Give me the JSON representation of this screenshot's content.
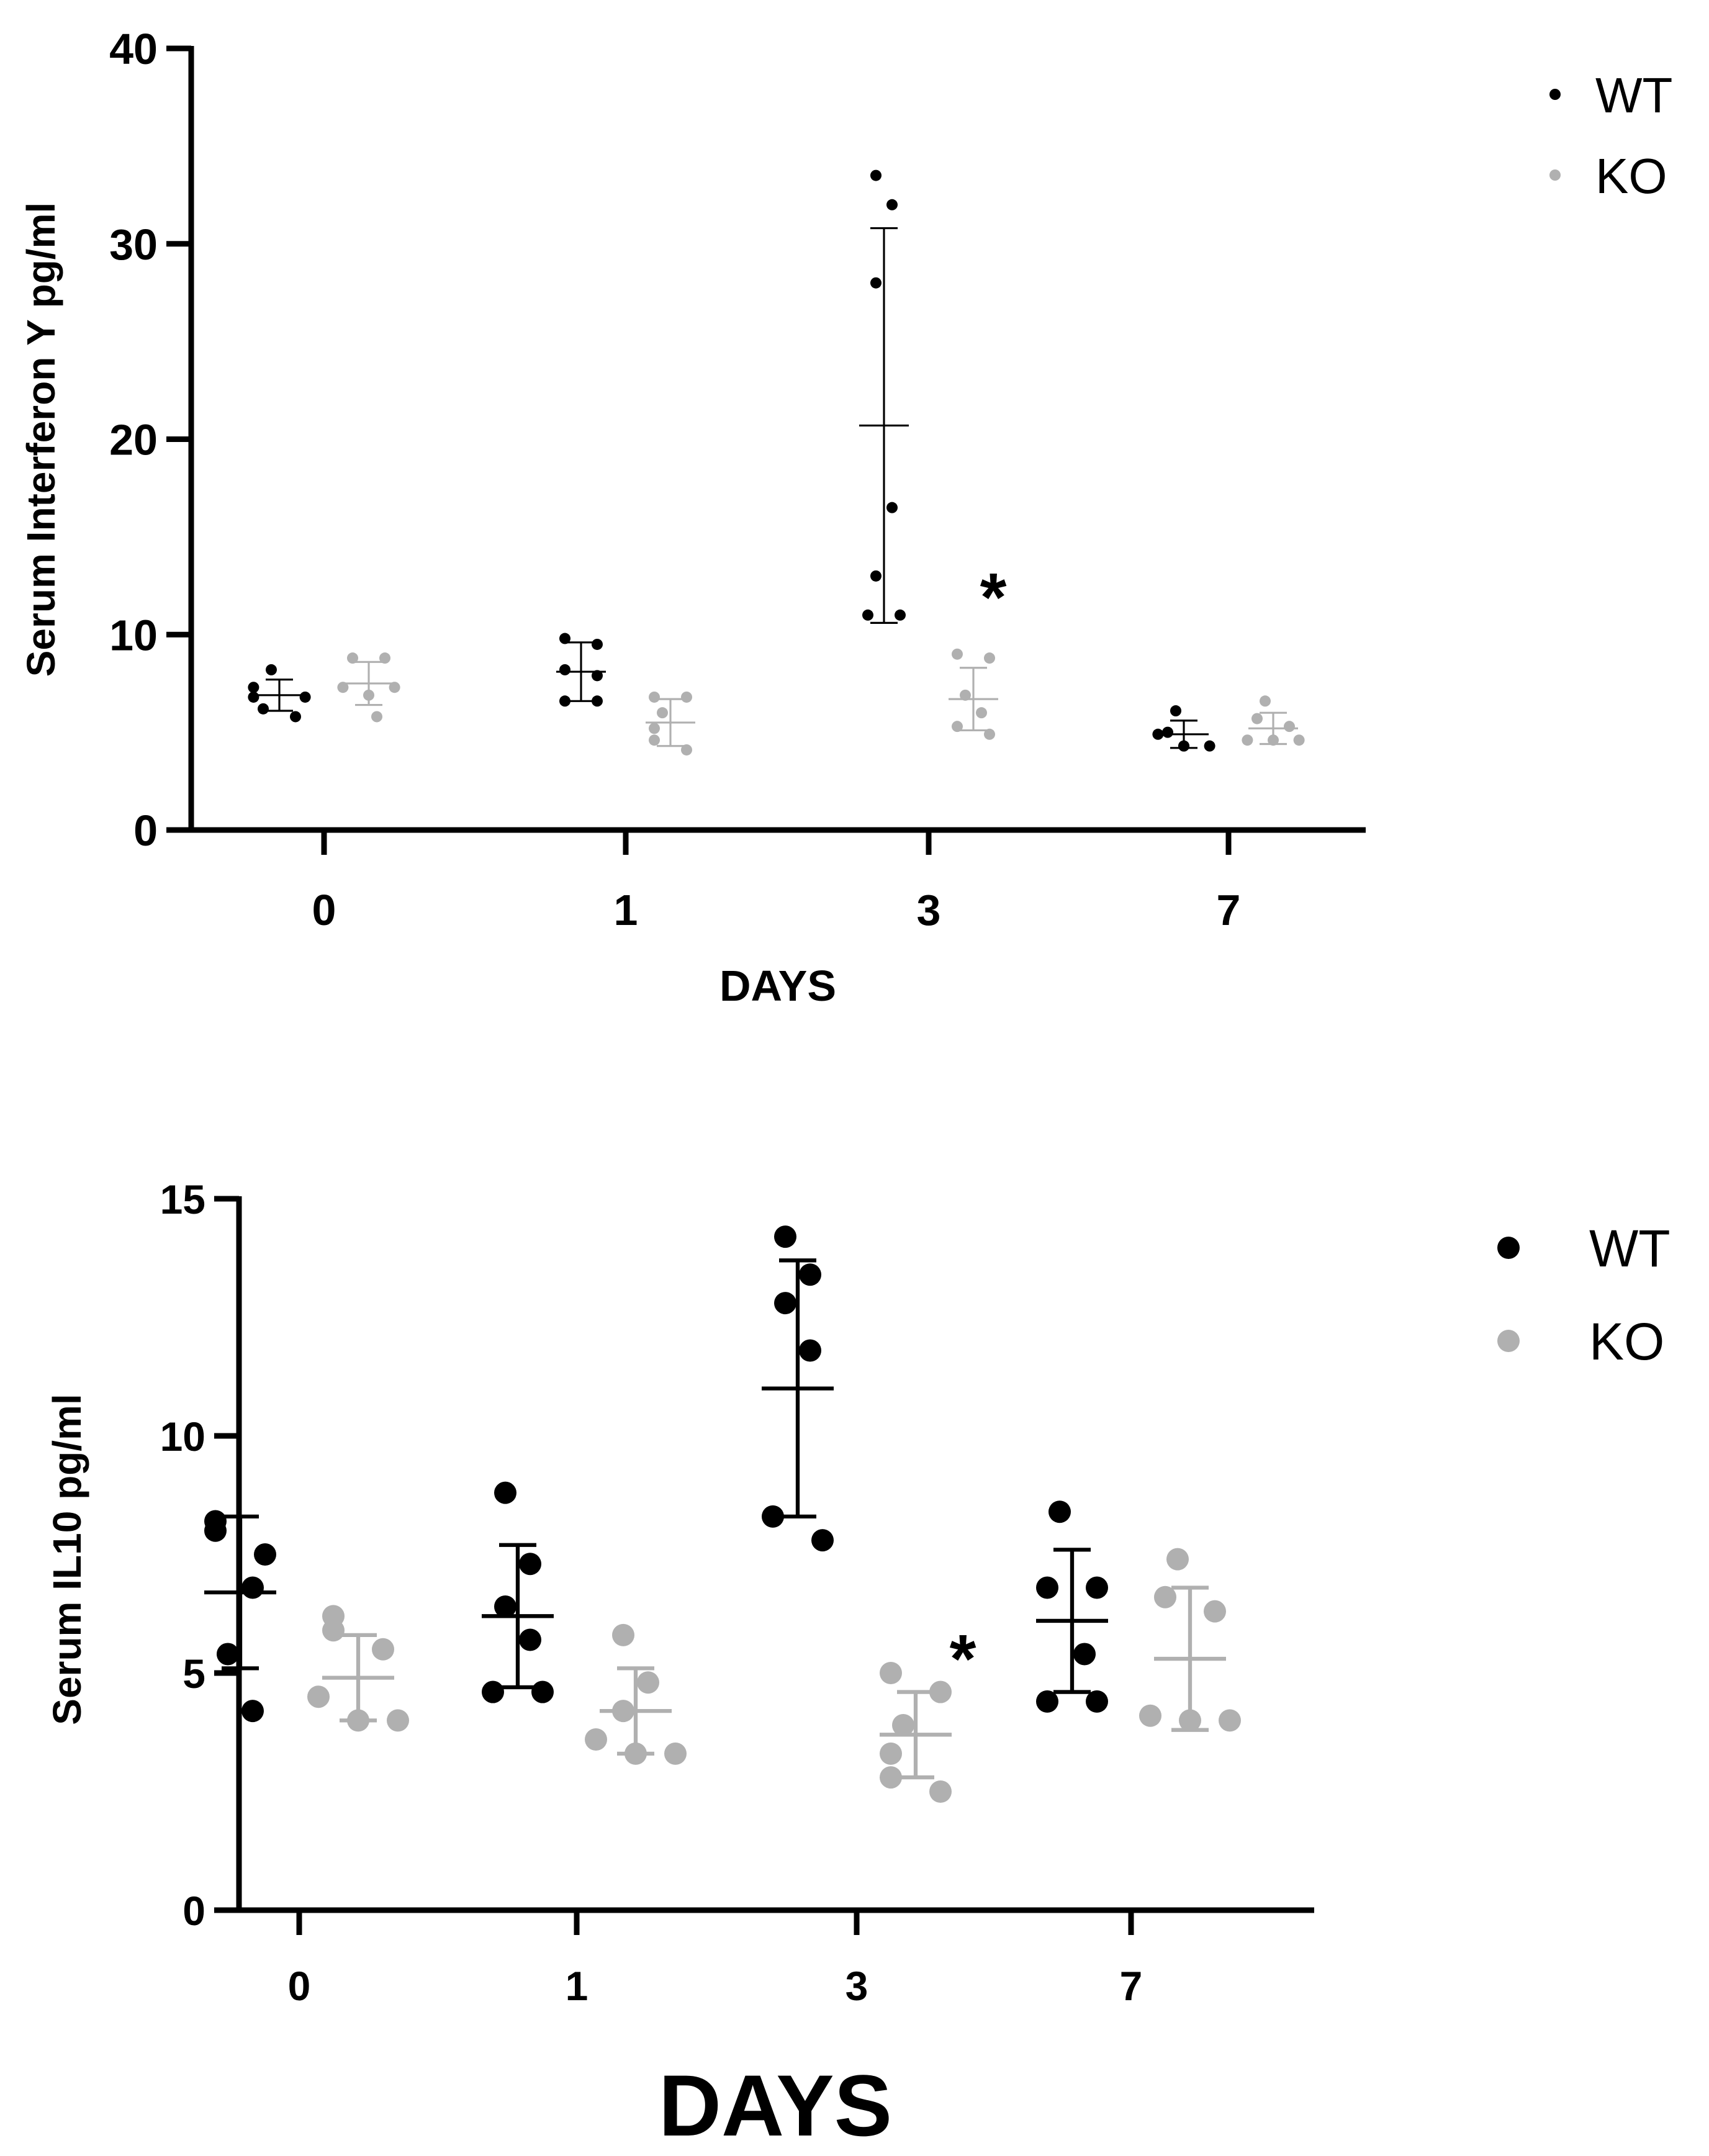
{
  "colors": {
    "wt": "#000000",
    "ko": "#b0b0b0",
    "axis": "#000000"
  },
  "chart_data": [
    {
      "type": "scatter",
      "title": "",
      "ylabel": "Serum Interferon Υ pg/ml",
      "xlabel": "DAYS",
      "ylim": [
        0,
        40
      ],
      "yticks": [
        "0",
        "10",
        "20",
        "30",
        "40"
      ],
      "categories": [
        "0",
        "1",
        "3",
        "7"
      ],
      "legend_position": "top-right",
      "significance_mark": "*",
      "significance_category": "3",
      "series": [
        {
          "name": "WT",
          "points": [
            [
              8.2,
              7.3,
              6.8,
              6.8,
              6.2,
              5.8
            ],
            [
              9.8,
              9.5,
              8.2,
              7.9,
              6.6,
              6.6
            ],
            [
              33.5,
              32.0,
              28.0,
              16.5,
              13.0,
              11.0,
              11.0
            ],
            [
              6.1,
              5.0,
              4.9,
              4.3,
              4.3,
              4.3
            ]
          ],
          "mean": [
            6.9,
            8.1,
            20.7,
            4.9
          ],
          "sd": [
            0.8,
            1.5,
            10.1,
            0.7
          ]
        },
        {
          "name": "KO",
          "points": [
            [
              8.8,
              8.8,
              7.3,
              7.3,
              6.9,
              5.8
            ],
            [
              6.8,
              6.8,
              6.0,
              5.2,
              4.6,
              4.1
            ],
            [
              9.0,
              8.8,
              6.9,
              6.0,
              5.3,
              4.9
            ],
            [
              6.6,
              5.7,
              5.3,
              4.6,
              4.6,
              4.6
            ]
          ],
          "mean": [
            7.5,
            5.5,
            6.7,
            5.2
          ],
          "sd": [
            1.1,
            1.2,
            1.6,
            0.8
          ]
        }
      ]
    },
    {
      "type": "scatter",
      "title": "",
      "ylabel": "Serum IL10 pg/ml",
      "xlabel": "DAYS",
      "ylim": [
        0,
        15
      ],
      "yticks": [
        "0",
        "5",
        "10",
        "15"
      ],
      "categories": [
        "0",
        "1",
        "3",
        "7"
      ],
      "legend_position": "top-right",
      "significance_mark": "*",
      "significance_category": "3",
      "series": [
        {
          "name": "WT",
          "points": [
            [
              8.2,
              8.0,
              7.5,
              6.8,
              5.4,
              4.2
            ],
            [
              8.8,
              7.3,
              6.4,
              5.7,
              4.6,
              4.6
            ],
            [
              14.2,
              13.4,
              12.8,
              11.8,
              8.3,
              7.8
            ],
            [
              8.4,
              6.8,
              6.8,
              5.4,
              4.4,
              4.4
            ]
          ],
          "mean": [
            6.7,
            6.2,
            11.0,
            6.1
          ],
          "sd": [
            1.6,
            1.5,
            2.7,
            1.5
          ]
        },
        {
          "name": "KO",
          "points": [
            [
              6.2,
              5.9,
              5.5,
              4.5,
              4.0,
              4.0
            ],
            [
              5.8,
              4.8,
              4.2,
              3.6,
              3.3,
              3.3
            ],
            [
              5.0,
              4.6,
              3.9,
              3.3,
              2.8,
              2.5
            ],
            [
              7.4,
              6.6,
              6.3,
              4.1,
              4.0,
              4.0
            ]
          ],
          "mean": [
            4.9,
            4.2,
            3.7,
            5.3
          ],
          "sd": [
            0.9,
            0.9,
            0.9,
            1.5
          ]
        }
      ]
    }
  ]
}
